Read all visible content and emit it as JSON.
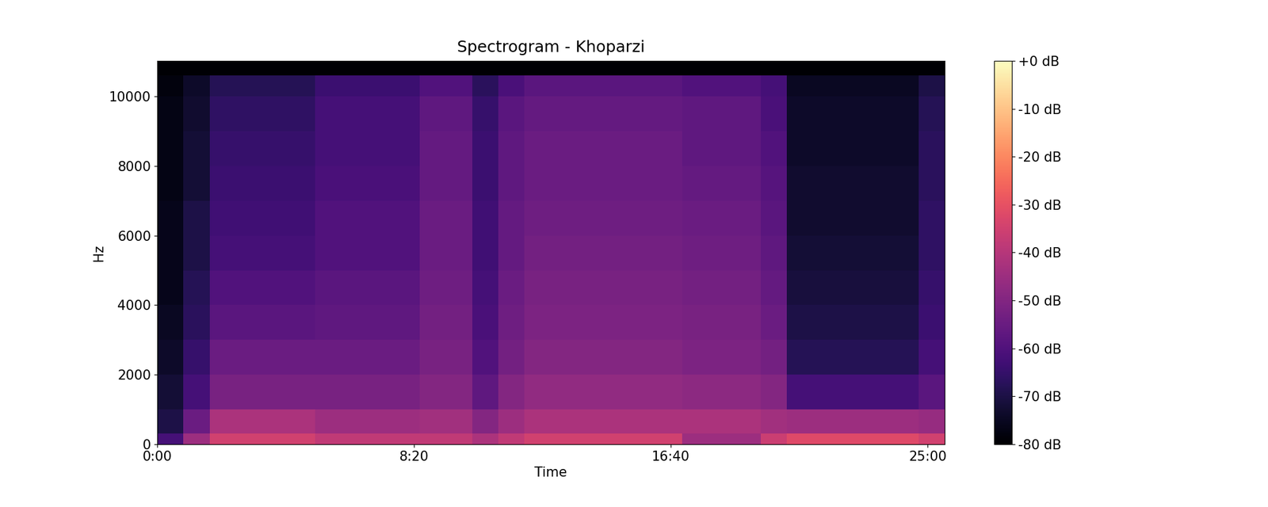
{
  "chart_data": {
    "type": "heatmap",
    "title": "Spectrogram - Khoparzi",
    "x_label": "Time",
    "y_label": "Hz",
    "xlim": [
      0,
      1533
    ],
    "ylim": [
      0,
      11025
    ],
    "xticks": [
      {
        "value": 0,
        "label": "0:00"
      },
      {
        "value": 500,
        "label": "8:20"
      },
      {
        "value": 1000,
        "label": "16:40"
      },
      {
        "value": 1500,
        "label": "25:00"
      }
    ],
    "yticks": [
      0,
      2000,
      4000,
      6000,
      8000,
      10000
    ],
    "x_edges": [
      0,
      51,
      102,
      153,
      204,
      256,
      307,
      358,
      409,
      460,
      511,
      562,
      613,
      664,
      715,
      767,
      818,
      869,
      920,
      971,
      1022,
      1073,
      1124,
      1175,
      1226,
      1278,
      1329,
      1380,
      1431,
      1482,
      1533
    ],
    "y_edges": [
      0,
      300,
      1000,
      2000,
      3000,
      4000,
      5000,
      6000,
      7000,
      8000,
      9000,
      10000,
      10600,
      11025
    ],
    "cells": [
      [
        -62,
        -45,
        -35,
        -35,
        -35,
        -35,
        -38,
        -38,
        -38,
        -38,
        -38,
        -38,
        -42,
        -38,
        -35,
        -35,
        -35,
        -35,
        -35,
        -35,
        -45,
        -45,
        -45,
        -36,
        -32,
        -32,
        -32,
        -32,
        -32,
        -35
      ],
      [
        -70,
        -55,
        -42,
        -42,
        -42,
        -42,
        -45,
        -45,
        -45,
        -45,
        -44,
        -44,
        -50,
        -45,
        -42,
        -42,
        -42,
        -42,
        -42,
        -42,
        -42,
        -42,
        -42,
        -44,
        -45,
        -45,
        -45,
        -45,
        -45,
        -46
      ],
      [
        -72,
        -62,
        -52,
        -52,
        -52,
        -52,
        -52,
        -52,
        -52,
        -52,
        -50,
        -50,
        -57,
        -50,
        -47,
        -47,
        -47,
        -47,
        -47,
        -47,
        -48,
        -48,
        -48,
        -50,
        -62,
        -62,
        -62,
        -62,
        -62,
        -58
      ],
      [
        -74,
        -65,
        -55,
        -55,
        -55,
        -55,
        -55,
        -55,
        -55,
        -55,
        -52,
        -52,
        -60,
        -53,
        -50,
        -50,
        -50,
        -50,
        -50,
        -50,
        -51,
        -51,
        -51,
        -53,
        -68,
        -68,
        -68,
        -68,
        -68,
        -62
      ],
      [
        -75,
        -67,
        -58,
        -58,
        -58,
        -58,
        -57,
        -57,
        -57,
        -57,
        -53,
        -53,
        -61,
        -54,
        -51,
        -51,
        -51,
        -51,
        -51,
        -51,
        -52,
        -52,
        -52,
        -55,
        -70,
        -70,
        -70,
        -70,
        -70,
        -64
      ],
      [
        -76,
        -68,
        -60,
        -60,
        -60,
        -60,
        -58,
        -58,
        -58,
        -58,
        -54,
        -54,
        -62,
        -55,
        -52,
        -52,
        -52,
        -52,
        -52,
        -52,
        -53,
        -53,
        -53,
        -56,
        -71,
        -71,
        -71,
        -71,
        -71,
        -65
      ],
      [
        -76,
        -70,
        -62,
        -62,
        -62,
        -62,
        -60,
        -60,
        -60,
        -60,
        -55,
        -55,
        -63,
        -56,
        -53,
        -53,
        -53,
        -53,
        -53,
        -53,
        -54,
        -54,
        -54,
        -57,
        -72,
        -72,
        -72,
        -72,
        -72,
        -66
      ],
      [
        -76,
        -70,
        -63,
        -63,
        -63,
        -63,
        -60,
        -60,
        -60,
        -60,
        -55,
        -55,
        -63,
        -56,
        -54,
        -54,
        -54,
        -54,
        -54,
        -54,
        -55,
        -55,
        -55,
        -58,
        -73,
        -73,
        -73,
        -73,
        -73,
        -66
      ],
      [
        -77,
        -72,
        -64,
        -64,
        -64,
        -64,
        -61,
        -61,
        -61,
        -61,
        -56,
        -56,
        -64,
        -57,
        -55,
        -55,
        -55,
        -55,
        -55,
        -55,
        -56,
        -56,
        -56,
        -59,
        -73,
        -73,
        -73,
        -73,
        -73,
        -67
      ],
      [
        -77,
        -72,
        -65,
        -65,
        -65,
        -65,
        -62,
        -62,
        -62,
        -62,
        -56,
        -56,
        -64,
        -57,
        -55,
        -55,
        -55,
        -55,
        -55,
        -55,
        -57,
        -57,
        -57,
        -60,
        -74,
        -74,
        -74,
        -74,
        -74,
        -67
      ],
      [
        -77,
        -73,
        -66,
        -66,
        -66,
        -66,
        -62,
        -62,
        -62,
        -62,
        -57,
        -57,
        -65,
        -58,
        -56,
        -56,
        -56,
        -56,
        -56,
        -56,
        -57,
        -57,
        -57,
        -61,
        -74,
        -74,
        -74,
        -74,
        -74,
        -68
      ],
      [
        -78,
        -74,
        -68,
        -68,
        -68,
        -68,
        -64,
        -64,
        -64,
        -64,
        -60,
        -60,
        -67,
        -61,
        -58,
        -58,
        -58,
        -58,
        -58,
        -58,
        -60,
        -60,
        -60,
        -62,
        -75,
        -75,
        -75,
        -75,
        -75,
        -70
      ],
      [
        -80,
        -80,
        -80,
        -80,
        -80,
        -80,
        -80,
        -80,
        -80,
        -80,
        -80,
        -80,
        -80,
        -80,
        -80,
        -80,
        -80,
        -80,
        -80,
        -80,
        -80,
        -80,
        -80,
        -80,
        -80,
        -80,
        -80,
        -80,
        -80,
        -80
      ]
    ],
    "colorbar": {
      "range": [
        -80,
        0
      ],
      "ticks": [
        {
          "value": 0,
          "label": "+0 dB"
        },
        {
          "value": -10,
          "label": "-10 dB"
        },
        {
          "value": -20,
          "label": "-20 dB"
        },
        {
          "value": -30,
          "label": "-30 dB"
        },
        {
          "value": -40,
          "label": "-40 dB"
        },
        {
          "value": -50,
          "label": "-50 dB"
        },
        {
          "value": -60,
          "label": "-60 dB"
        },
        {
          "value": -70,
          "label": "-70 dB"
        },
        {
          "value": -80,
          "label": "-80 dB"
        }
      ]
    }
  }
}
